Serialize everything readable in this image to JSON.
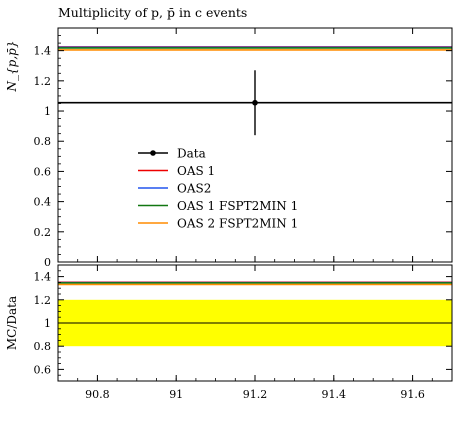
{
  "chart_data": [
    {
      "type": "line",
      "title": "Multiplicity of p, p̄ in c events",
      "xlabel": "",
      "ylabel": "N_{p,p̄}",
      "xlim": [
        90.7,
        91.7
      ],
      "ylim": [
        0,
        1.55
      ],
      "y_ticks": [
        0,
        0.2,
        0.4,
        0.6,
        0.8,
        1,
        1.2,
        1.4
      ],
      "y_tick_labels": [
        "0",
        "0.2",
        "0.4",
        "0.6",
        "0.8",
        "1",
        "1.2",
        "1.4"
      ],
      "data": {
        "name": "Data",
        "x": 91.2,
        "y": 1.055,
        "yerr_low": 0.215,
        "yerr_high": 0.215,
        "color": "#000000"
      },
      "series": [
        {
          "name": "OAS 1",
          "y": 1.425,
          "color": "#ee0000"
        },
        {
          "name": "OAS2",
          "y": 1.422,
          "color": "#2255ee"
        },
        {
          "name": "OAS 1 FSPT2MIN 1",
          "y": 1.418,
          "color": "#117711"
        },
        {
          "name": "OAS 2 FSPT2MIN 1",
          "y": 1.405,
          "color": "#ff8c00"
        }
      ],
      "legend_placement": "center-left",
      "grid": false
    },
    {
      "type": "line",
      "title": "",
      "xlabel": "",
      "ylabel": "MC/Data",
      "xlim": [
        90.7,
        91.7
      ],
      "ylim": [
        0.5,
        1.5
      ],
      "x_ticks": [
        90.8,
        91,
        91.2,
        91.4,
        91.6
      ],
      "x_tick_labels": [
        "90.8",
        "91",
        "91.2",
        "91.4",
        "91.6"
      ],
      "y_ticks": [
        0.6,
        0.8,
        1,
        1.2,
        1.4
      ],
      "y_tick_labels": [
        "0.6",
        "0.8",
        "1",
        "1.2",
        "1.4"
      ],
      "uncertainty_band": {
        "low": 0.8,
        "high": 1.2,
        "color": "#ffff00"
      },
      "reference_line": 1.0,
      "series": [
        {
          "name": "OAS 1",
          "y": 1.351,
          "color": "#ee0000"
        },
        {
          "name": "OAS2",
          "y": 1.348,
          "color": "#2255ee"
        },
        {
          "name": "OAS 1 FSPT2MIN 1",
          "y": 1.345,
          "color": "#117711"
        },
        {
          "name": "OAS 2 FSPT2MIN 1",
          "y": 1.332,
          "color": "#ff8c00"
        }
      ],
      "grid": false
    }
  ]
}
